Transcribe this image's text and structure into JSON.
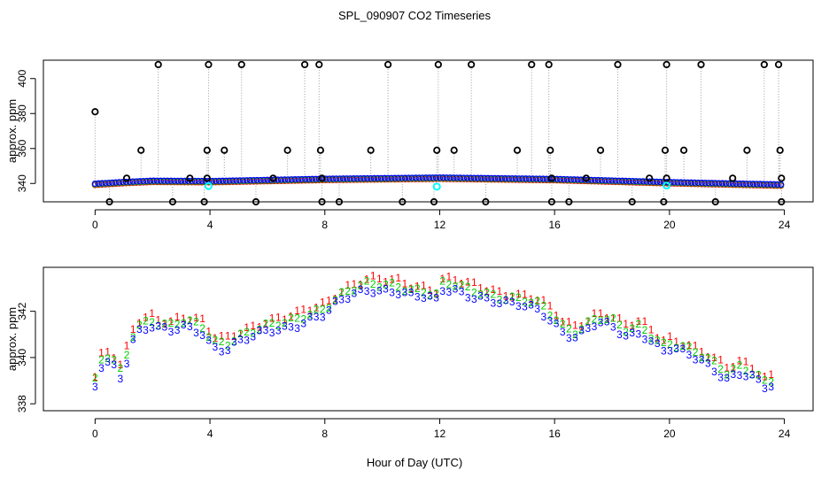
{
  "title": "SPL_090907  CO2 Timeseries",
  "xlabel": "Hour of Day (UTC)",
  "chart_data": [
    {
      "type": "scatter",
      "title": "SPL_090907  CO2 Timeseries",
      "xlabel": "",
      "ylabel": "approx. ppm",
      "xlim": [
        -1.8,
        25.0
      ],
      "ylim": [
        329.5,
        410.5
      ],
      "xticks": [
        0,
        4,
        8,
        12,
        16,
        20,
        24
      ],
      "xtick_labels": [
        "0",
        "4",
        "8",
        "12",
        "16",
        "20",
        "24"
      ],
      "yticks": [
        340,
        360,
        380,
        400
      ],
      "ytick_labels": [
        "340",
        "360",
        "380",
        "400"
      ],
      "grid": false,
      "series_colors": {
        "black": "#000000",
        "red": "#ff0000",
        "green": "#00cd00",
        "blue": "#0000ff",
        "cyan": "#00ffff",
        "dotted": "#999999"
      },
      "spikes": [
        {
          "x": 0.0,
          "y": 381
        },
        {
          "x": 0.5,
          "y": 329
        },
        {
          "x": 1.1,
          "y": 343
        },
        {
          "x": 1.6,
          "y": 359
        },
        {
          "x": 2.2,
          "y": 408
        },
        {
          "x": 2.7,
          "y": 329
        },
        {
          "x": 3.3,
          "y": 343
        },
        {
          "x": 3.8,
          "y": 329
        },
        {
          "x": 3.9,
          "y": 359
        },
        {
          "x": 3.95,
          "y": 408
        },
        {
          "x": 3.9,
          "y": 343
        },
        {
          "x": 4.5,
          "y": 359
        },
        {
          "x": 5.1,
          "y": 408
        },
        {
          "x": 5.6,
          "y": 329
        },
        {
          "x": 6.2,
          "y": 343
        },
        {
          "x": 6.7,
          "y": 359
        },
        {
          "x": 7.3,
          "y": 408
        },
        {
          "x": 7.8,
          "y": 408
        },
        {
          "x": 7.85,
          "y": 359
        },
        {
          "x": 7.9,
          "y": 329
        },
        {
          "x": 7.9,
          "y": 343
        },
        {
          "x": 8.5,
          "y": 329
        },
        {
          "x": 9.6,
          "y": 359
        },
        {
          "x": 10.2,
          "y": 408
        },
        {
          "x": 10.7,
          "y": 329
        },
        {
          "x": 11.8,
          "y": 329
        },
        {
          "x": 11.9,
          "y": 359
        },
        {
          "x": 11.95,
          "y": 408
        },
        {
          "x": 12.5,
          "y": 359
        },
        {
          "x": 13.1,
          "y": 408
        },
        {
          "x": 13.6,
          "y": 329
        },
        {
          "x": 14.7,
          "y": 359
        },
        {
          "x": 15.2,
          "y": 408
        },
        {
          "x": 15.8,
          "y": 408
        },
        {
          "x": 15.85,
          "y": 359
        },
        {
          "x": 15.9,
          "y": 343
        },
        {
          "x": 15.9,
          "y": 329
        },
        {
          "x": 16.5,
          "y": 329
        },
        {
          "x": 17.1,
          "y": 343
        },
        {
          "x": 17.6,
          "y": 359
        },
        {
          "x": 18.2,
          "y": 408
        },
        {
          "x": 18.7,
          "y": 329
        },
        {
          "x": 19.3,
          "y": 343
        },
        {
          "x": 19.8,
          "y": 329
        },
        {
          "x": 19.85,
          "y": 359
        },
        {
          "x": 19.9,
          "y": 408
        },
        {
          "x": 19.9,
          "y": 343
        },
        {
          "x": 20.5,
          "y": 359
        },
        {
          "x": 21.1,
          "y": 408
        },
        {
          "x": 21.6,
          "y": 329
        },
        {
          "x": 22.2,
          "y": 343
        },
        {
          "x": 22.7,
          "y": 359
        },
        {
          "x": 23.3,
          "y": 408
        },
        {
          "x": 23.8,
          "y": 408
        },
        {
          "x": 23.85,
          "y": 359
        },
        {
          "x": 23.9,
          "y": 343
        },
        {
          "x": 23.9,
          "y": 329
        }
      ],
      "cyan_points": [
        {
          "x": 3.95,
          "y": 338.5
        },
        {
          "x": 11.9,
          "y": 338.2
        },
        {
          "x": 19.9,
          "y": 338.8
        }
      ],
      "baseline": {
        "x": [
          0,
          1,
          2,
          4,
          8,
          12,
          16,
          20,
          24
        ],
        "y": [
          339.5,
          340.5,
          341.2,
          341.0,
          342.3,
          343.0,
          342.2,
          340.4,
          339.0
        ]
      }
    },
    {
      "type": "scatter",
      "title": "",
      "xlabel": "Hour of Day (UTC)",
      "ylabel": "approx. ppm",
      "xlim": [
        -1.8,
        25.0
      ],
      "ylim": [
        337.7,
        343.9
      ],
      "xticks": [
        0,
        4,
        8,
        12,
        16,
        20,
        24
      ],
      "xtick_labels": [
        "0",
        "4",
        "8",
        "12",
        "16",
        "20",
        "24"
      ],
      "yticks": [
        338,
        340,
        342
      ],
      "ytick_labels": [
        "338",
        "340",
        "342"
      ],
      "grid": false,
      "marker_labels": {
        "red": "1",
        "green": "2",
        "blue": "3"
      },
      "series": [
        {
          "name": "1",
          "color": "#ff0000",
          "offset": 0.35
        },
        {
          "name": "2",
          "color": "#00cd00",
          "offset": 0.15
        },
        {
          "name": "3",
          "color": "#0000ff",
          "offset": -0.1
        }
      ],
      "x": [
        0,
        0.2,
        0.5,
        0.8,
        0.9,
        1.1,
        1.4,
        1.6,
        2.0,
        2.3,
        2.7,
        3.0,
        3.4,
        3.9,
        4.0,
        4.3,
        4.6,
        5.0,
        5.5,
        6.0,
        6.5,
        7.0,
        7.5,
        8.0,
        8.5,
        9.0,
        9.5,
        10.0,
        10.5,
        11.0,
        11.5,
        11.95,
        12.0,
        12.5,
        13.0,
        13.5,
        14.0,
        14.5,
        15.0,
        15.5,
        16.0,
        16.3,
        16.7,
        17.0,
        17.5,
        18.0,
        18.5,
        19.0,
        19.5,
        19.95,
        20.0,
        20.5,
        21.0,
        21.5,
        22.0,
        22.5,
        23.0,
        23.3,
        23.7
      ],
      "y": [
        338.8,
        339.7,
        339.9,
        339.5,
        339.2,
        340.0,
        341.2,
        341.3,
        341.5,
        341.3,
        341.2,
        341.4,
        341.3,
        341.1,
        340.6,
        340.5,
        340.5,
        340.8,
        341.0,
        341.2,
        341.3,
        341.5,
        341.8,
        342.0,
        342.5,
        342.8,
        343.0,
        343.0,
        343.0,
        342.8,
        342.7,
        342.5,
        343.0,
        343.0,
        342.8,
        342.7,
        342.5,
        342.4,
        342.3,
        342.1,
        341.6,
        341.2,
        341.0,
        341.2,
        341.6,
        341.4,
        341.0,
        341.2,
        340.7,
        340.3,
        340.5,
        340.3,
        340.0,
        339.6,
        339.2,
        339.5,
        339.2,
        338.8,
        338.9
      ]
    }
  ]
}
